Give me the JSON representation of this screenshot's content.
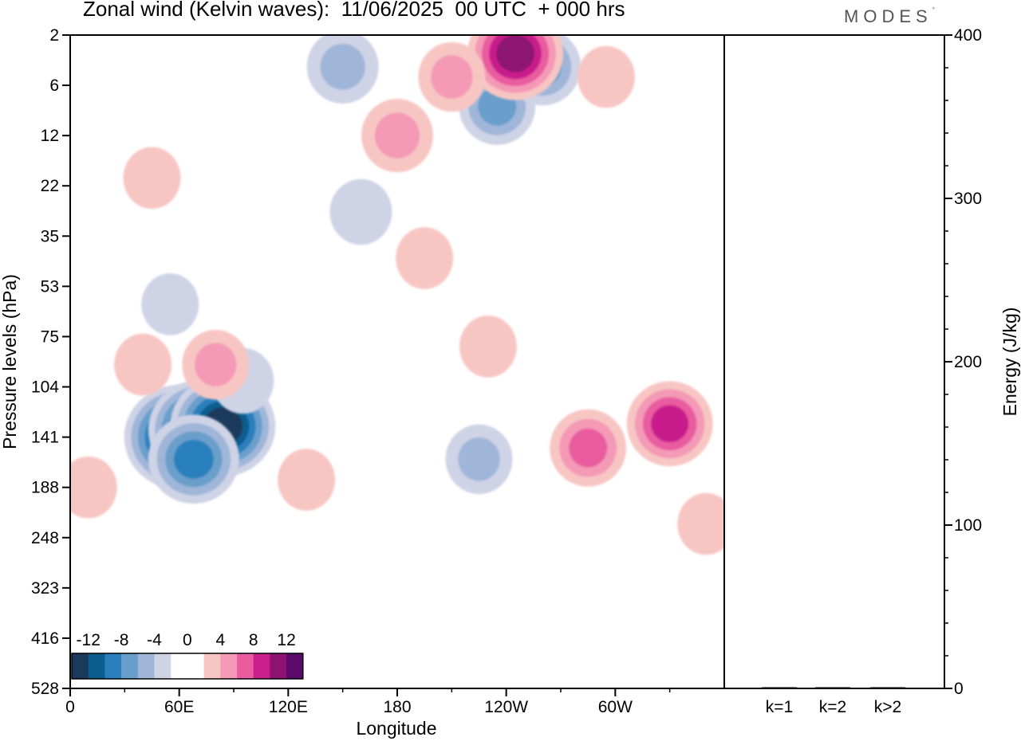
{
  "header": {
    "title": "Zonal wind (Kelvin waves):  11/06/2025  00 UTC  + 000 hrs",
    "brand": "MODES"
  },
  "colors": {
    "neg": [
      "#1a3a5c",
      "#0b5d8e",
      "#2a80bd",
      "#6a9ecb",
      "#9fb6d9",
      "#cfd3e6"
    ],
    "zero": "#ffffff",
    "pos": [
      "#f7c6c3",
      "#f49ab6",
      "#ea5ca0",
      "#c81f8c",
      "#8e1373",
      "#5b0a6a"
    ]
  },
  "chart_data": [
    {
      "type": "heatmap",
      "title": "Zonal wind (Kelvin waves):  11/06/2025  00 UTC  + 000 hrs",
      "xlabel": "Longitude",
      "ylabel": "Pressure levels (hPa)",
      "x_ticks": [
        "0",
        "60E",
        "120E",
        "180",
        "120W",
        "60W"
      ],
      "x_tick_degrees": [
        0,
        60,
        120,
        180,
        240,
        300
      ],
      "xlim": [
        0,
        360
      ],
      "y_ticks": [
        "2",
        "6",
        "12",
        "22",
        "35",
        "53",
        "75",
        "104",
        "141",
        "188",
        "248",
        "323",
        "416",
        "528"
      ],
      "colorbar": {
        "labels": [
          "-12",
          "-8",
          "-4",
          "0",
          "4",
          "8",
          "12"
        ],
        "label_values": [
          -12,
          -8,
          -4,
          0,
          4,
          8,
          12
        ],
        "levels": [
          -14,
          -12,
          -10,
          -8,
          -6,
          -4,
          -2,
          2,
          4,
          6,
          8,
          10,
          12,
          14
        ]
      },
      "features": [
        {
          "lon": 60,
          "p": 141,
          "value": -13
        },
        {
          "lon": 72,
          "p": 135,
          "value": -12
        },
        {
          "lon": 84,
          "p": 132,
          "value": -12
        },
        {
          "lon": 68,
          "p": 160,
          "value": -9
        },
        {
          "lon": 95,
          "p": 100,
          "value": -3
        },
        {
          "lon": 160,
          "p": 28,
          "value": -3
        },
        {
          "lon": 55,
          "p": 60,
          "value": -2
        },
        {
          "lon": 235,
          "p": 8,
          "value": -6
        },
        {
          "lon": 260,
          "p": 4,
          "value": -6
        },
        {
          "lon": 150,
          "p": 4,
          "value": -5
        },
        {
          "lon": 225,
          "p": 160,
          "value": -4
        },
        {
          "lon": 180,
          "p": 12,
          "value": 5
        },
        {
          "lon": 245,
          "p": 3,
          "value": 10
        },
        {
          "lon": 210,
          "p": 5,
          "value": 4
        },
        {
          "lon": 80,
          "p": 90,
          "value": 4
        },
        {
          "lon": 330,
          "p": 130,
          "value": 8
        },
        {
          "lon": 285,
          "p": 150,
          "value": 6
        },
        {
          "lon": 230,
          "p": 80,
          "value": 2
        },
        {
          "lon": 195,
          "p": 42,
          "value": 2
        },
        {
          "lon": 350,
          "p": 230,
          "value": 2
        },
        {
          "lon": 130,
          "p": 180,
          "value": 2
        },
        {
          "lon": 40,
          "p": 90,
          "value": 2
        },
        {
          "lon": 10,
          "p": 188,
          "value": 2
        },
        {
          "lon": 295,
          "p": 5,
          "value": 2
        },
        {
          "lon": 45,
          "p": 20,
          "value": 2
        }
      ]
    },
    {
      "type": "bar",
      "ylabel": "Energy (J/kg)",
      "categories": [
        "k=1",
        "k=2",
        "k>2"
      ],
      "values": [
        0.5,
        0.5,
        0.5
      ],
      "ylim": [
        0,
        400
      ],
      "y_ticks": [
        "0",
        "100",
        "200",
        "300",
        "400"
      ],
      "y_tick_values": [
        0,
        100,
        200,
        300,
        400
      ]
    }
  ]
}
